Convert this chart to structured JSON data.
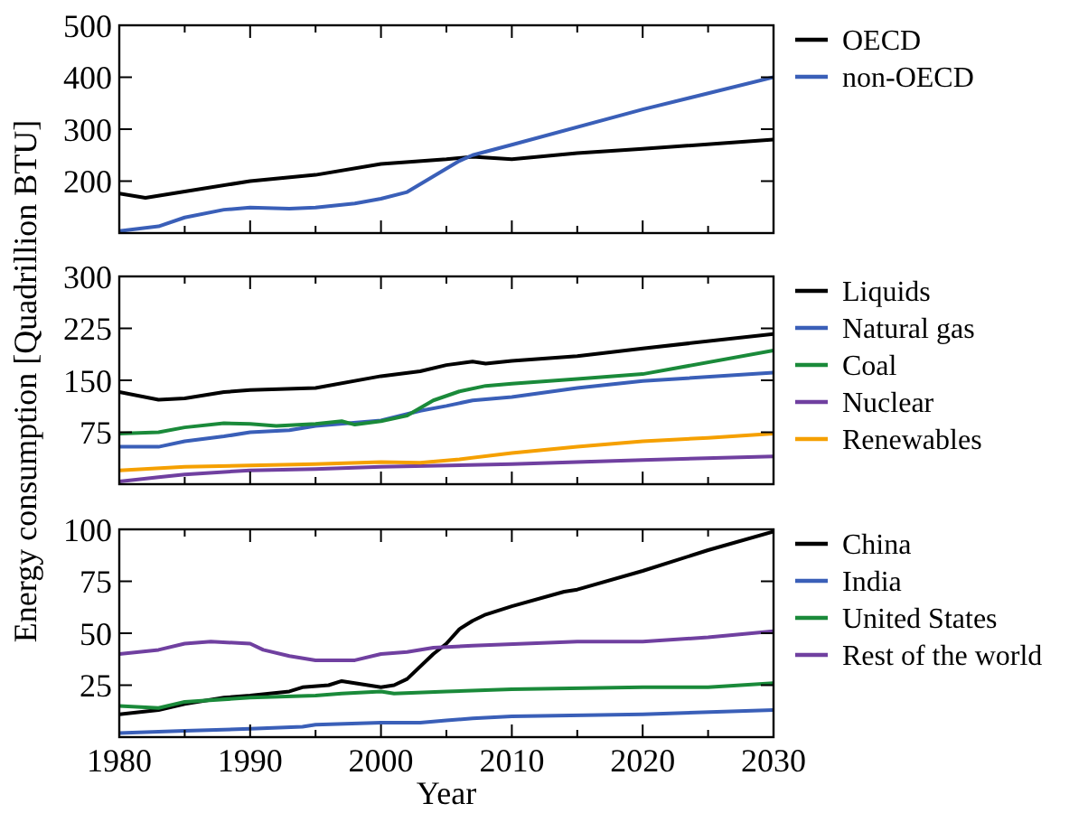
{
  "chart_data": [
    {
      "type": "line",
      "tick_labels": "y",
      "legend": "right",
      "xlim": [
        1980,
        2030
      ],
      "ylim": [
        100,
        500
      ],
      "yticks": [
        200,
        300,
        400,
        500
      ],
      "xticks": [
        1980,
        {
          "value": 1985,
          "label": null
        },
        1990,
        {
          "value": 1995,
          "label": null
        },
        2000,
        {
          "value": 2005,
          "label": null
        },
        2010,
        {
          "value": 2015,
          "label": null
        },
        2020,
        {
          "value": 2025,
          "label": null
        },
        2030
      ],
      "series": [
        {
          "name": "OECD",
          "color": "#000000",
          "x": [
            1980,
            1982,
            1985,
            1990,
            1995,
            2000,
            2005,
            2007,
            2010,
            2015,
            2020,
            2030
          ],
          "values": [
            176,
            168,
            180,
            200,
            212,
            233,
            242,
            247,
            242,
            254,
            262,
            280
          ]
        },
        {
          "name": "non-OECD",
          "color": "#3a5fb8",
          "x": [
            1980,
            1983,
            1985,
            1988,
            1990,
            1993,
            1995,
            1998,
            2000,
            2002,
            2004,
            2006,
            2007,
            2010,
            2020,
            2030
          ],
          "values": [
            104,
            113,
            130,
            145,
            149,
            147,
            149,
            157,
            166,
            179,
            209,
            239,
            250,
            270,
            338,
            400
          ]
        }
      ]
    },
    {
      "type": "line",
      "tick_labels": "y",
      "legend": "right",
      "ylabel": "Energy consumption [Quadrillion BTU]",
      "xlim": [
        1980,
        2030
      ],
      "ylim": [
        0,
        300
      ],
      "yticks": [
        75,
        150,
        225,
        300
      ],
      "xticks": [
        1980,
        {
          "value": 1985,
          "label": null
        },
        1990,
        {
          "value": 1995,
          "label": null
        },
        2000,
        {
          "value": 2005,
          "label": null
        },
        2010,
        {
          "value": 2015,
          "label": null
        },
        2020,
        {
          "value": 2025,
          "label": null
        },
        2030
      ],
      "series": [
        {
          "name": "Liquids",
          "color": "#000000",
          "x": [
            1980,
            1983,
            1985,
            1988,
            1990,
            1995,
            2000,
            2003,
            2005,
            2007,
            2008,
            2010,
            2015,
            2020,
            2030
          ],
          "values": [
            133,
            122,
            124,
            133,
            136,
            139,
            156,
            163,
            172,
            177,
            174,
            178,
            185,
            196,
            217
          ]
        },
        {
          "name": "Natural gas",
          "color": "#3a5fb8",
          "x": [
            1980,
            1983,
            1985,
            1988,
            1990,
            1993,
            1995,
            2000,
            2003,
            2005,
            2007,
            2010,
            2015,
            2020,
            2030
          ],
          "values": [
            54,
            54,
            62,
            69,
            75,
            78,
            84,
            92,
            106,
            113,
            121,
            126,
            139,
            149,
            161
          ]
        },
        {
          "name": "Coal",
          "color": "#1a8a3a",
          "x": [
            1980,
            1983,
            1985,
            1988,
            1990,
            1992,
            1995,
            1997,
            1998,
            2000,
            2002,
            2004,
            2006,
            2008,
            2010,
            2015,
            2020,
            2030
          ],
          "values": [
            73,
            75,
            82,
            88,
            87,
            84,
            87,
            91,
            86,
            91,
            99,
            121,
            134,
            142,
            145,
            152,
            159,
            193
          ]
        },
        {
          "name": "Nuclear",
          "color": "#7040a0",
          "x": [
            1980,
            1983,
            1985,
            1990,
            1995,
            2000,
            2010,
            2020,
            2030
          ],
          "values": [
            4,
            10,
            14,
            20,
            22,
            25,
            29,
            35,
            40
          ]
        },
        {
          "name": "Renewables",
          "color": "#f5a000",
          "x": [
            1980,
            1985,
            1990,
            1995,
            2000,
            2003,
            2006,
            2010,
            2015,
            2020,
            2025,
            2030
          ],
          "values": [
            20,
            25,
            27,
            29,
            32,
            31,
            36,
            45,
            54,
            62,
            67,
            73
          ]
        }
      ]
    },
    {
      "type": "line",
      "legend": "right",
      "xlabel": "Year",
      "xlim": [
        1980,
        2030
      ],
      "ylim": [
        0,
        100
      ],
      "yticks": [
        25,
        50,
        75,
        100
      ],
      "xticks": [
        1980,
        {
          "value": 1985,
          "label": null
        },
        1990,
        {
          "value": 1995,
          "label": null
        },
        2000,
        {
          "value": 2005,
          "label": null
        },
        2010,
        {
          "value": 2015,
          "label": null
        },
        2020,
        {
          "value": 2025,
          "label": null
        },
        2030
      ],
      "series": [
        {
          "name": "China",
          "color": "#000000",
          "x": [
            1980,
            1983,
            1985,
            1988,
            1990,
            1993,
            1994,
            1996,
            1997,
            1998,
            2000,
            2001,
            2002,
            2004,
            2005,
            2006,
            2007,
            2008,
            2010,
            2014,
            2015,
            2020,
            2025,
            2030
          ],
          "values": [
            11,
            13,
            16,
            19,
            20,
            22,
            24,
            25,
            27,
            26,
            24,
            25,
            28,
            40,
            45,
            52,
            56,
            59,
            63,
            70,
            71,
            80,
            90,
            99
          ]
        },
        {
          "name": "India",
          "color": "#3a5fb8",
          "x": [
            1980,
            1985,
            1990,
            1994,
            1995,
            2000,
            2003,
            2005,
            2007,
            2010,
            2020,
            2030
          ],
          "values": [
            2,
            3,
            4,
            5,
            6,
            7,
            7,
            8,
            9,
            10,
            11,
            13
          ]
        },
        {
          "name": "United States",
          "color": "#1a8a3a",
          "x": [
            1980,
            1983,
            1985,
            1990,
            1995,
            1997,
            2000,
            2001,
            2005,
            2010,
            2020,
            2025,
            2030
          ],
          "values": [
            15,
            14,
            17,
            19,
            20,
            21,
            22,
            21,
            22,
            23,
            24,
            24,
            26
          ]
        },
        {
          "name": "Rest of the world",
          "color": "#7040a0",
          "x": [
            1980,
            1983,
            1985,
            1987,
            1990,
            1991,
            1993,
            1995,
            1996,
            1998,
            2000,
            2002,
            2004,
            2007,
            2015,
            2020,
            2025,
            2030
          ],
          "values": [
            40,
            42,
            45,
            46,
            45,
            42,
            39,
            37,
            37,
            37,
            40,
            41,
            43,
            44,
            46,
            46,
            48,
            51
          ]
        }
      ]
    }
  ]
}
